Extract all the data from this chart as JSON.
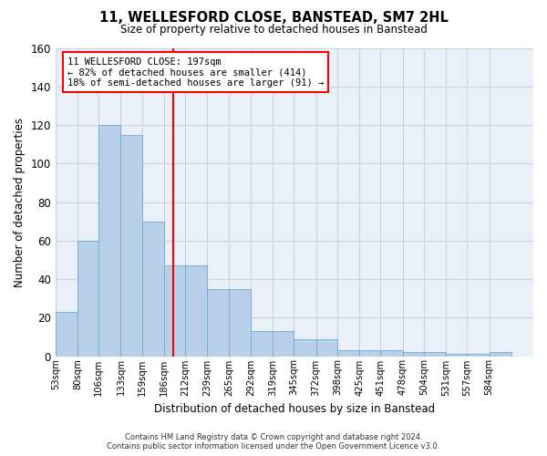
{
  "title": "11, WELLESFORD CLOSE, BANSTEAD, SM7 2HL",
  "subtitle": "Size of property relative to detached houses in Banstead",
  "xlabel": "Distribution of detached houses by size in Banstead",
  "ylabel": "Number of detached properties",
  "bin_labels": [
    "53sqm",
    "80sqm",
    "106sqm",
    "133sqm",
    "159sqm",
    "186sqm",
    "212sqm",
    "239sqm",
    "265sqm",
    "292sqm",
    "319sqm",
    "345sqm",
    "372sqm",
    "398sqm",
    "425sqm",
    "451sqm",
    "478sqm",
    "504sqm",
    "531sqm",
    "557sqm",
    "584sqm"
  ],
  "bin_edges": [
    53,
    80,
    106,
    133,
    159,
    186,
    212,
    239,
    265,
    292,
    319,
    345,
    372,
    398,
    425,
    451,
    478,
    504,
    531,
    557,
    584,
    611
  ],
  "bar_heights": [
    23,
    60,
    120,
    115,
    70,
    47,
    47,
    35,
    35,
    13,
    13,
    9,
    9,
    3,
    3,
    3,
    2,
    2,
    1,
    1,
    2
  ],
  "bar_color": "#b8d0ea",
  "bar_edge_color": "#6aaad4",
  "vline_x": 197,
  "vline_color": "red",
  "annotation_line1": "11 WELLESFORD CLOSE: 197sqm",
  "annotation_line2": "← 82% of detached houses are smaller (414)",
  "annotation_line3": "18% of semi-detached houses are larger (91) →",
  "ylim": [
    0,
    160
  ],
  "yticks": [
    0,
    20,
    40,
    60,
    80,
    100,
    120,
    140,
    160
  ],
  "grid_color": "#c8d4e0",
  "footer_text": "Contains HM Land Registry data © Crown copyright and database right 2024.\nContains public sector information licensed under the Open Government Licence v3.0.",
  "bg_color": "#eaf0f8",
  "title_fontsize": 10.5,
  "subtitle_fontsize": 8.5
}
